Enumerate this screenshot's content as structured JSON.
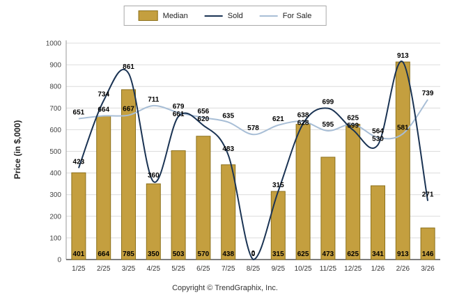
{
  "legend": {
    "items": [
      {
        "label": "Median",
        "type": "bar"
      },
      {
        "label": "Sold",
        "type": "line"
      },
      {
        "label": "For Sale",
        "type": "line"
      }
    ]
  },
  "ylabel": "Price (in $,000)",
  "footer": "Copyright © TrendGraphix, Inc.",
  "colors": {
    "median_fill": "#C49F3F",
    "median_border": "#8C711C",
    "sold": "#1A3353",
    "for_sale": "#A8BED6",
    "grid": "#DCDCDC",
    "axis_bottom": "#555555",
    "axis_left": "#9A9A9A",
    "label": "#000000"
  },
  "chart_data": {
    "type": "bar",
    "subtype": "bar+line combo",
    "categories": [
      "1/25",
      "2/25",
      "3/25",
      "4/25",
      "5/25",
      "6/25",
      "7/25",
      "8/25",
      "9/25",
      "10/25",
      "11/25",
      "12/25",
      "1/26",
      "2/26",
      "3/26"
    ],
    "series": [
      {
        "name": "Median",
        "type": "bar",
        "values": [
          401,
          664,
          785,
          350,
          503,
          570,
          438,
          0,
          315,
          625,
          473,
          625,
          341,
          913,
          146
        ]
      },
      {
        "name": "Sold",
        "type": "line",
        "values": [
          423,
          734,
          861,
          360,
          661,
          620,
          483,
          0,
          315,
          628,
          699,
          599,
          530,
          913,
          271
        ]
      },
      {
        "name": "For Sale",
        "type": "line",
        "values": [
          651,
          664,
          667,
          711,
          679,
          656,
          635,
          578,
          621,
          638,
          595,
          625,
          564,
          581,
          739
        ]
      }
    ],
    "title": "",
    "xlabel": "",
    "ylabel": "Price (in $,000)",
    "ylim": [
      0,
      1000
    ],
    "ytick_step": 100,
    "grid": "horizontal",
    "legend_position": "top-center",
    "data_labels": true
  }
}
